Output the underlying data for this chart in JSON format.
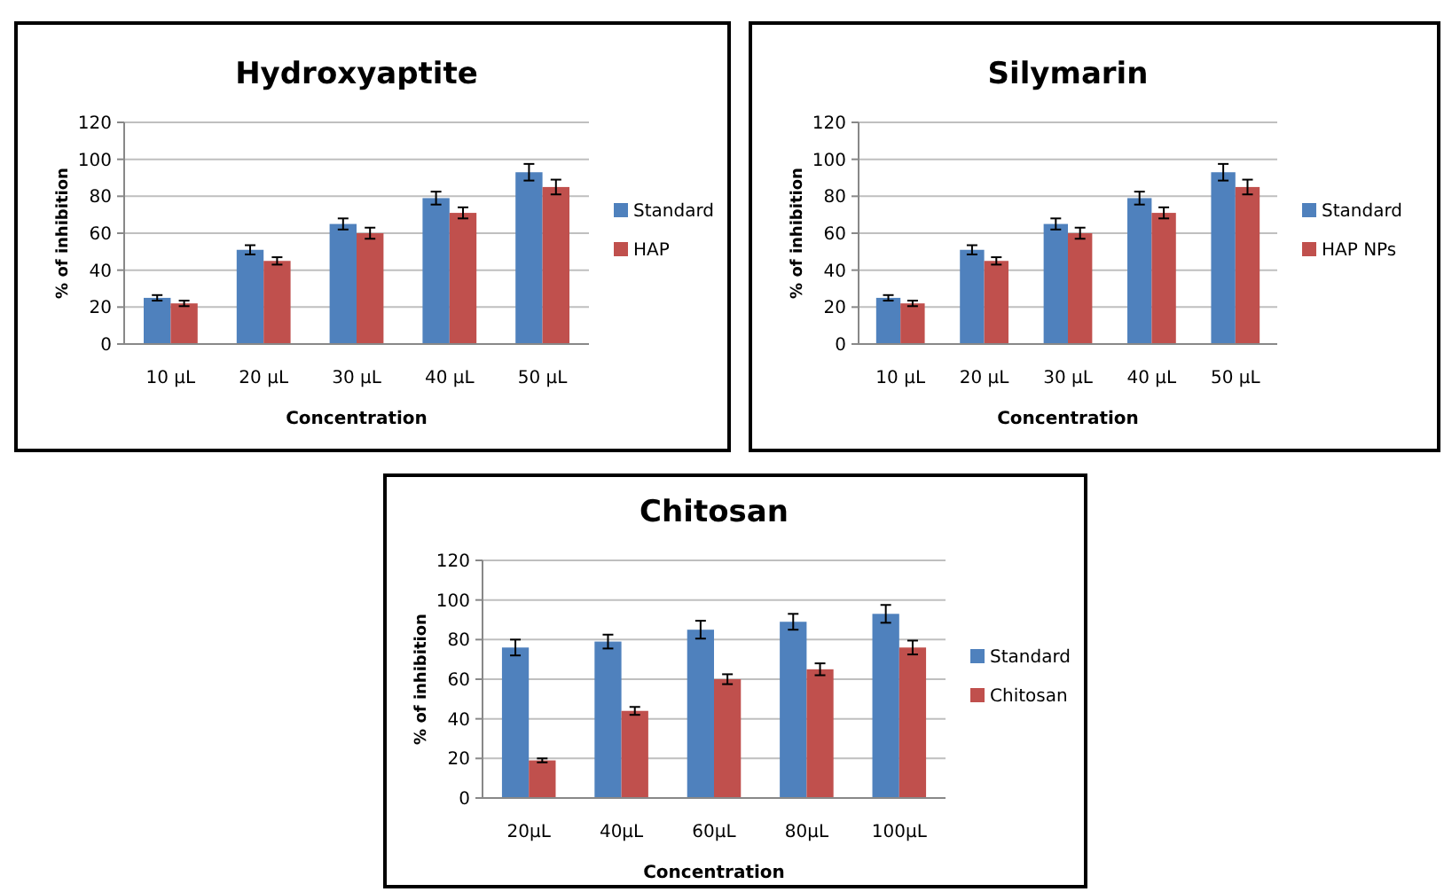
{
  "chart_data": [
    {
      "type": "bar",
      "title": "Hydroxyaptite",
      "xlabel": "Concentration",
      "ylabel": "% of inhibition",
      "categories": [
        "10 µL",
        "20 µL",
        "30 µL",
        "40 µL",
        "50 µL"
      ],
      "series": [
        {
          "name": "Standard",
          "color": "#4f81bd",
          "values": [
            25,
            51,
            65,
            79,
            93
          ],
          "errors": [
            1.5,
            2.5,
            3,
            3.5,
            4.5
          ]
        },
        {
          "name": "HAP",
          "color": "#c0504d",
          "values": [
            22,
            45,
            60,
            71,
            85
          ],
          "errors": [
            1.5,
            2,
            3,
            3,
            4
          ]
        }
      ],
      "ylim": [
        0,
        120
      ],
      "yticks": [
        0,
        20,
        40,
        60,
        80,
        100,
        120
      ],
      "grid": "y",
      "legend": "right"
    },
    {
      "type": "bar",
      "title": "Silymarin",
      "xlabel": "Concentration",
      "ylabel": "% of inhibition",
      "categories": [
        "10 µL",
        "20 µL",
        "30 µL",
        "40 µL",
        "50 µL"
      ],
      "series": [
        {
          "name": "Standard",
          "color": "#4f81bd",
          "values": [
            25,
            51,
            65,
            79,
            93
          ],
          "errors": [
            1.5,
            2.5,
            3,
            3.5,
            4.5
          ]
        },
        {
          "name": "HAP NPs",
          "color": "#c0504d",
          "values": [
            22,
            45,
            60,
            71,
            85
          ],
          "errors": [
            1.5,
            2,
            3,
            3,
            4
          ]
        }
      ],
      "ylim": [
        0,
        120
      ],
      "yticks": [
        0,
        20,
        40,
        60,
        80,
        100,
        120
      ],
      "grid": "y",
      "legend": "right"
    },
    {
      "type": "bar",
      "title": "Chitosan",
      "xlabel": "Concentration",
      "ylabel": "% of inhibition",
      "categories": [
        "20µL",
        "40µL",
        "60µL",
        "80µL",
        "100µL"
      ],
      "series": [
        {
          "name": "Standard",
          "color": "#4f81bd",
          "values": [
            76,
            79,
            85,
            89,
            93
          ],
          "errors": [
            4,
            3.5,
            4.5,
            4,
            4.5
          ]
        },
        {
          "name": "Chitosan",
          "color": "#c0504d",
          "values": [
            19,
            44,
            60,
            65,
            76
          ],
          "errors": [
            1,
            2,
            2.5,
            3,
            3.5
          ]
        }
      ],
      "ylim": [
        0,
        120
      ],
      "yticks": [
        0,
        20,
        40,
        60,
        80,
        100,
        120
      ],
      "grid": "y",
      "legend": "right"
    }
  ]
}
